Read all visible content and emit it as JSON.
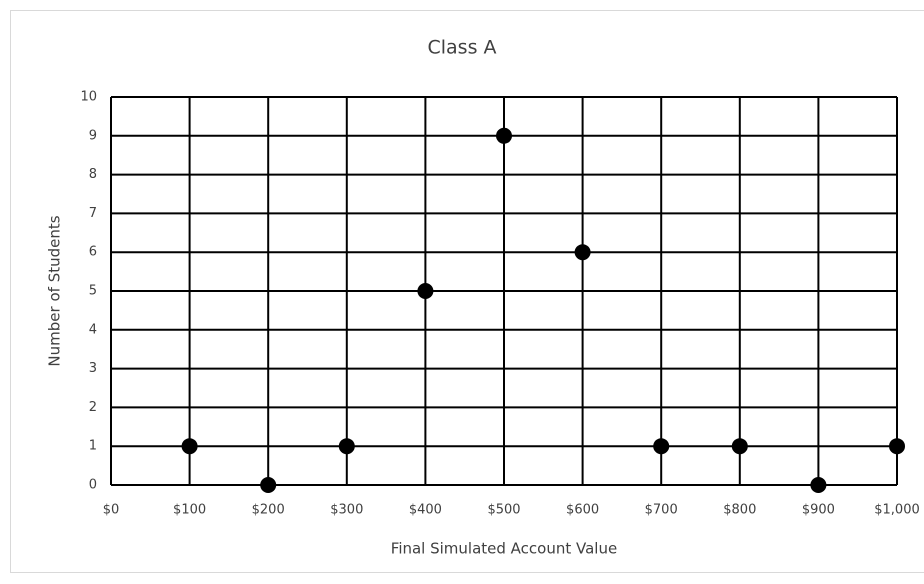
{
  "chart_data": {
    "type": "scatter",
    "title": "Class A",
    "x_label": "Final Simulated Account Value",
    "y_label": "Number of Students",
    "x": [
      100,
      200,
      300,
      400,
      500,
      600,
      700,
      800,
      900,
      1000
    ],
    "values": [
      1,
      0,
      1,
      5,
      9,
      6,
      1,
      1,
      0,
      1
    ],
    "color": "#000000",
    "xlim": [
      0,
      1000
    ],
    "xticks": [
      {
        "value": 0,
        "label": "$0"
      },
      {
        "value": 100,
        "label": "$100"
      },
      {
        "value": 200,
        "label": "$200"
      },
      {
        "value": 300,
        "label": "$300"
      },
      {
        "value": 400,
        "label": "$400"
      },
      {
        "value": 500,
        "label": "$500"
      },
      {
        "value": 600,
        "label": "$600"
      },
      {
        "value": 700,
        "label": "$700"
      },
      {
        "value": 800,
        "label": "$800"
      },
      {
        "value": 900,
        "label": "$900"
      },
      {
        "value": 1000,
        "label": "$1,000"
      }
    ],
    "ylim": [
      0,
      10
    ],
    "yticks": [
      0,
      1,
      2,
      3,
      4,
      5,
      6,
      7,
      8,
      9,
      10
    ],
    "grid": true
  }
}
